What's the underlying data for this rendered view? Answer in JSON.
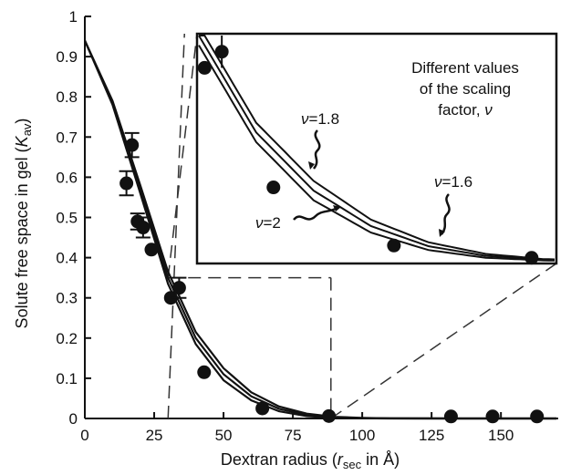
{
  "chart_data": {
    "type": "scatter",
    "xlabel": {
      "pre": "Dextran radius (",
      "var": "r",
      "sub": "sec",
      "post": " in Å)"
    },
    "ylabel": {
      "pre": "Solute free space in gel (",
      "var": "K",
      "sub": "av",
      "post": ")"
    },
    "xlim": [
      0,
      170
    ],
    "ylim": [
      0,
      1
    ],
    "x_ticks": [
      "0",
      "25",
      "50",
      "75",
      "100",
      "125",
      "150"
    ],
    "y_ticks": [
      "0",
      "0.1",
      "0.2",
      "0.3",
      "0.4",
      "0.5",
      "0.6",
      "0.7",
      "0.8",
      "0.9",
      "1"
    ],
    "x_tick_values": [
      0,
      25,
      50,
      75,
      100,
      125,
      150
    ],
    "y_tick_values": [
      0,
      0.1,
      0.2,
      0.3,
      0.4,
      0.5,
      0.6,
      0.7,
      0.8,
      0.9,
      1
    ],
    "points": [
      {
        "x": 15,
        "y": 0.585,
        "err": 0.03
      },
      {
        "x": 17,
        "y": 0.68,
        "err": 0.03
      },
      {
        "x": 19,
        "y": 0.49,
        "err": 0.02
      },
      {
        "x": 21,
        "y": 0.475,
        "err": 0.025
      },
      {
        "x": 24,
        "y": 0.42,
        "err": 0
      },
      {
        "x": 31,
        "y": 0.3,
        "err": 0
      },
      {
        "x": 34,
        "y": 0.325,
        "err": 0.025
      },
      {
        "x": 43,
        "y": 0.115,
        "err": 0
      },
      {
        "x": 64,
        "y": 0.025,
        "err": 0
      },
      {
        "x": 88,
        "y": 0.006,
        "err": 0
      },
      {
        "x": 132,
        "y": 0.005,
        "err": 0
      },
      {
        "x": 147,
        "y": 0.005,
        "err": 0
      },
      {
        "x": 163,
        "y": 0.005,
        "err": 0
      }
    ],
    "curves": [
      {
        "nu": 1.6,
        "x": [
          0,
          10,
          20,
          30,
          40,
          50,
          60,
          70,
          80,
          90,
          100,
          110,
          120,
          140,
          170
        ],
        "y": [
          0.94,
          0.79,
          0.58,
          0.365,
          0.215,
          0.125,
          0.065,
          0.03,
          0.012,
          0.004,
          0.0015,
          0.0005,
          0.0002,
          0,
          0
        ]
      },
      {
        "nu": 1.8,
        "x": [
          0,
          10,
          20,
          30,
          40,
          50,
          60,
          70,
          80,
          90,
          100,
          110,
          120,
          140,
          170
        ],
        "y": [
          0.94,
          0.785,
          0.57,
          0.35,
          0.2,
          0.11,
          0.055,
          0.024,
          0.009,
          0.003,
          0.001,
          0.0003,
          0.0001,
          0,
          0
        ]
      },
      {
        "nu": 2,
        "x": [
          0,
          10,
          20,
          30,
          40,
          50,
          60,
          70,
          80,
          90,
          100,
          110,
          120,
          140,
          170
        ],
        "y": [
          0.94,
          0.78,
          0.56,
          0.335,
          0.185,
          0.095,
          0.045,
          0.018,
          0.006,
          0.002,
          0.0005,
          0.0001,
          0,
          0,
          0
        ]
      }
    ],
    "inset": {
      "xlim": [
        30,
        92
      ],
      "ylim": [
        0,
        0.35
      ],
      "legend_lines": [
        "Different values",
        "of the scaling",
        "factor, "
      ],
      "legend_var": "ν",
      "labels": [
        {
          "var": "ν",
          "text": "=1.8"
        },
        {
          "var": "ν",
          "text": "=1.6"
        },
        {
          "var": "ν",
          "text": "=2"
        }
      ]
    }
  }
}
